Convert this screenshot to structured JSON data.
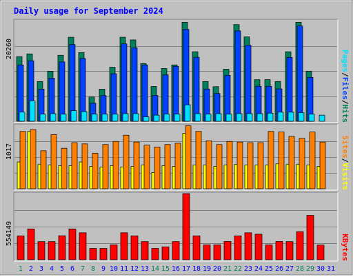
{
  "title": "Daily usage for September 2024",
  "colors": {
    "title": "#0000ff",
    "background": "#c0c0c0",
    "grid": "#808080",
    "hits": "#00805c",
    "files": "#0040ff",
    "pages": "#00e0ff",
    "visits": "#ffff00",
    "sites": "#ff8000",
    "kbytes": "#ff0000",
    "weekend_label": "#00805c",
    "weekday_label": "#0000ff"
  },
  "legend": {
    "panel1": {
      "pages": "Pages",
      "sep1": "/",
      "files": "Files",
      "sep2": "/",
      "hits": "Hits"
    },
    "panel2": {
      "sites": "Sites",
      "sep1": "/",
      "visits": "Visits"
    },
    "panel3": {
      "kbytes": "KBytes"
    }
  },
  "chart_data": {
    "type": "bar",
    "title": "Daily usage for September 2024",
    "days": [
      "1",
      "2",
      "3",
      "4",
      "5",
      "6",
      "7",
      "8",
      "9",
      "10",
      "11",
      "12",
      "13",
      "14",
      "15",
      "16",
      "17",
      "18",
      "19",
      "20",
      "21",
      "22",
      "23",
      "24",
      "25",
      "26",
      "27",
      "28",
      "29",
      "30",
      "31"
    ],
    "weekend_days": [
      "1",
      "7",
      "8",
      "14",
      "15",
      "21",
      "22",
      "28",
      "29"
    ],
    "panels": [
      {
        "name": "hits-files-pages",
        "ymax_label": "20260",
        "ymax": 20260,
        "series": [
          {
            "name": "Hits",
            "values": [
              13010,
              13570,
              8010,
              10070,
              13290,
              16920,
              13840,
              4890,
              6460,
              10890,
              16920,
              16380,
              11620,
              7000,
              10620,
              11350,
              19940,
              14000,
              8010,
              6970,
              10480,
              19470,
              17000,
              8380,
              8380,
              8010,
              14000,
              19940,
              10070,
              0,
              0
            ]
          },
          {
            "name": "Files",
            "values": [
              11340,
              12190,
              6460,
              8690,
              11950,
              15440,
              12640,
              3630,
              5160,
              9570,
              15580,
              14790,
              11350,
              5190,
              9340,
              11060,
              18500,
              12890,
              6490,
              5600,
              9250,
              18210,
              15320,
              7040,
              7040,
              6520,
              12860,
              19200,
              8830,
              0,
              0
            ]
          },
          {
            "name": "Pages",
            "values": [
              1840,
              4100,
              1430,
              1530,
              1430,
              2130,
              1940,
              1430,
              1430,
              1430,
              1530,
              1530,
              900,
              1230,
              1430,
              1430,
              3320,
              1530,
              1430,
              1530,
              1430,
              1530,
              1530,
              1530,
              1630,
              1830,
              1830,
              1730,
              1430,
              1230,
              0
            ]
          }
        ]
      },
      {
        "name": "sites-visits",
        "ymax_label": "1017",
        "ymax": 1017,
        "series": [
          {
            "name": "Sites",
            "values": [
              920,
              950,
              610,
              870,
              650,
              740,
              720,
              570,
              710,
              760,
              860,
              750,
              700,
              670,
              710,
              730,
              1010,
              920,
              770,
              710,
              760,
              750,
              740,
              740,
              920,
              910,
              840,
              810,
              910,
              750,
              0
            ]
          },
          {
            "name": "Visits",
            "values": [
              430,
              920,
              390,
              380,
              370,
              370,
              430,
              360,
              350,
              370,
              350,
              360,
              380,
              260,
              370,
              360,
              890,
              380,
              380,
              360,
              380,
              390,
              380,
              380,
              380,
              400,
              390,
              390,
              380,
              360,
              0
            ]
          }
        ]
      },
      {
        "name": "kbytes",
        "ymax_label": "554149",
        "ymax": 554149,
        "series": [
          {
            "name": "KBytes",
            "values": [
              200000,
              258000,
              152000,
              152000,
              201000,
              258000,
              226000,
              95000,
              95000,
              125000,
              226000,
              200000,
              152000,
              95000,
              108000,
              152000,
              554149,
              200000,
              125000,
              125000,
              153000,
              200000,
              226000,
              214000,
              125000,
              153000,
              152000,
              235000,
              372000,
              123000,
              0
            ]
          }
        ]
      }
    ]
  }
}
